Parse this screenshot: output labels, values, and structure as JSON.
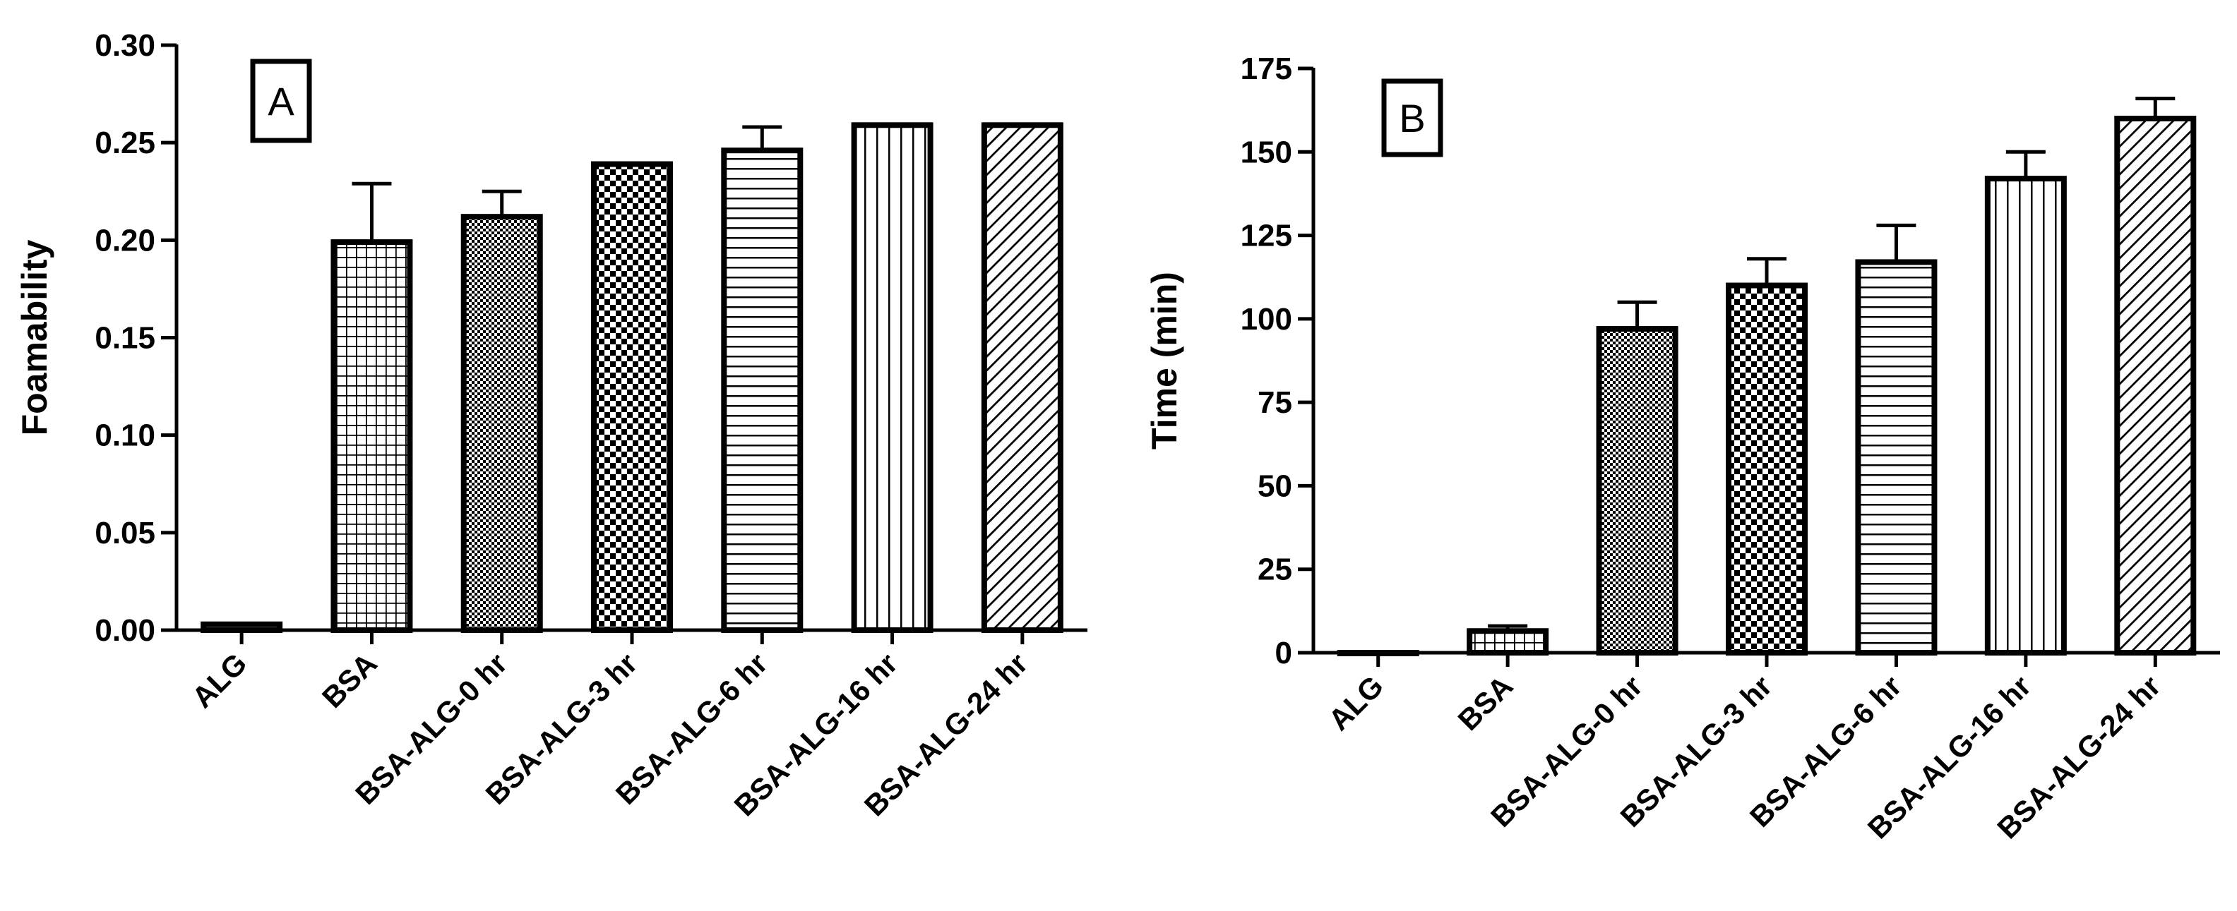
{
  "chart_data": [
    {
      "type": "bar",
      "panel_label": "A",
      "categories": [
        "ALG",
        "BSA",
        "BSA-ALG-0 hr",
        "BSA-ALG-3 hr",
        "BSA-ALG-6 hr",
        "BSA-ALG-16 hr",
        "BSA-ALG-24 hr"
      ],
      "values": [
        0.003,
        0.199,
        0.212,
        0.239,
        0.246,
        0.259,
        0.259
      ],
      "error": [
        0,
        0.03,
        0.013,
        0,
        0.012,
        0,
        0
      ],
      "patterns": [
        "solid",
        "grid",
        "dots",
        "checker",
        "hlines",
        "vlines",
        "diag"
      ],
      "xlabel": "",
      "ylabel": "Foamability",
      "ylim": [
        0,
        0.3
      ],
      "yticks": [
        "0.00",
        "0.05",
        "0.10",
        "0.15",
        "0.20",
        "0.25",
        "0.30"
      ],
      "grid": false,
      "colors": {
        "bar_stroke": "#000000",
        "bar_fill": "#ffffff"
      }
    },
    {
      "type": "bar",
      "panel_label": "B",
      "categories": [
        "ALG",
        "BSA",
        "BSA-ALG-0 hr",
        "BSA-ALG-3 hr",
        "BSA-ALG-6 hr",
        "BSA-ALG-16 hr",
        "BSA-ALG-24 hr"
      ],
      "values": [
        0,
        6.5,
        97,
        110,
        117,
        142,
        160
      ],
      "error": [
        0,
        1.5,
        8,
        8,
        11,
        8,
        6
      ],
      "patterns": [
        "solid",
        "grid",
        "dots",
        "checker",
        "hlines",
        "vlines",
        "diag"
      ],
      "xlabel": "",
      "ylabel": "Time (min)",
      "ylim": [
        0,
        175
      ],
      "yticks": [
        "0",
        "25",
        "50",
        "75",
        "100",
        "125",
        "150",
        "175"
      ],
      "grid": false,
      "colors": {
        "bar_stroke": "#000000",
        "bar_fill": "#ffffff"
      }
    }
  ]
}
